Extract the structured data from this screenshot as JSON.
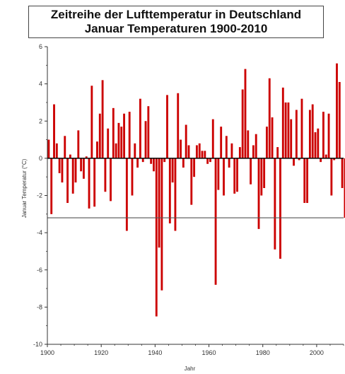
{
  "chart_data": {
    "type": "bar",
    "title": "Zeitreihe der Lufttemperatur in Deutschland",
    "subtitle": "Januar Temperaturen 1900-2010",
    "xlabel": "Jahr",
    "ylabel": "Januar Temperatur (°C)",
    "xlim": [
      1900,
      2010
    ],
    "ylim": [
      -10,
      6
    ],
    "x_ticks": [
      1900,
      1920,
      1940,
      1960,
      1980,
      2000
    ],
    "y_ticks": [
      6,
      4,
      2,
      0,
      -2,
      -4,
      -6,
      -8,
      -10
    ],
    "reference_line": -3.2,
    "bar_color": "#cc0000",
    "grid": false,
    "years": [
      1900,
      1901,
      1902,
      1903,
      1904,
      1905,
      1906,
      1907,
      1908,
      1909,
      1910,
      1911,
      1912,
      1913,
      1914,
      1915,
      1916,
      1917,
      1918,
      1919,
      1920,
      1921,
      1922,
      1923,
      1924,
      1925,
      1926,
      1927,
      1928,
      1929,
      1930,
      1931,
      1932,
      1933,
      1934,
      1935,
      1936,
      1937,
      1938,
      1939,
      1940,
      1941,
      1942,
      1943,
      1944,
      1945,
      1946,
      1947,
      1948,
      1949,
      1950,
      1951,
      1952,
      1953,
      1954,
      1955,
      1956,
      1957,
      1958,
      1959,
      1960,
      1961,
      1962,
      1963,
      1964,
      1965,
      1966,
      1967,
      1968,
      1969,
      1970,
      1971,
      1972,
      1973,
      1974,
      1975,
      1976,
      1977,
      1978,
      1979,
      1980,
      1981,
      1982,
      1983,
      1984,
      1985,
      1986,
      1987,
      1988,
      1989,
      1990,
      1991,
      1992,
      1993,
      1994,
      1995,
      1996,
      1997,
      1998,
      1999,
      2000,
      2001,
      2002,
      2003,
      2004,
      2005,
      2006,
      2007,
      2008,
      2009,
      2010
    ],
    "values": [
      1.0,
      -3.0,
      2.9,
      0.8,
      -0.8,
      -1.3,
      1.2,
      -2.4,
      0.2,
      -1.9,
      -1.3,
      1.5,
      -0.7,
      -1.1,
      0.1,
      -2.7,
      3.9,
      -2.6,
      0.9,
      2.4,
      4.2,
      -1.8,
      1.6,
      -2.3,
      2.7,
      0.8,
      1.9,
      1.7,
      2.4,
      -3.9,
      2.5,
      -2.0,
      0.8,
      -0.5,
      3.2,
      -0.2,
      2.0,
      2.8,
      -0.3,
      -0.7,
      -8.5,
      -4.8,
      -7.1,
      -0.2,
      3.4,
      -3.5,
      -1.3,
      -3.9,
      3.5,
      1.0,
      -0.5,
      1.8,
      0.7,
      -2.5,
      -1.0,
      0.7,
      0.8,
      0.4,
      0.4,
      -0.3,
      -0.2,
      2.1,
      -6.8,
      -1.7,
      1.7,
      -2.0,
      1.2,
      -0.5,
      0.8,
      -1.9,
      -1.8,
      0.6,
      3.7,
      4.8,
      1.5,
      -1.4,
      0.7,
      1.3,
      -3.8,
      -2.0,
      -1.6,
      1.7,
      4.3,
      2.2,
      -4.9,
      0.6,
      -5.4,
      3.8,
      3.0,
      3.0,
      2.1,
      -0.4,
      2.6,
      -0.1,
      3.2,
      -2.4,
      -2.4,
      2.6,
      2.9,
      1.4,
      1.6,
      -0.2,
      2.5,
      0.2,
      2.4,
      -2.0,
      -0.1,
      5.1,
      4.1,
      -1.6,
      -3.2
    ]
  }
}
